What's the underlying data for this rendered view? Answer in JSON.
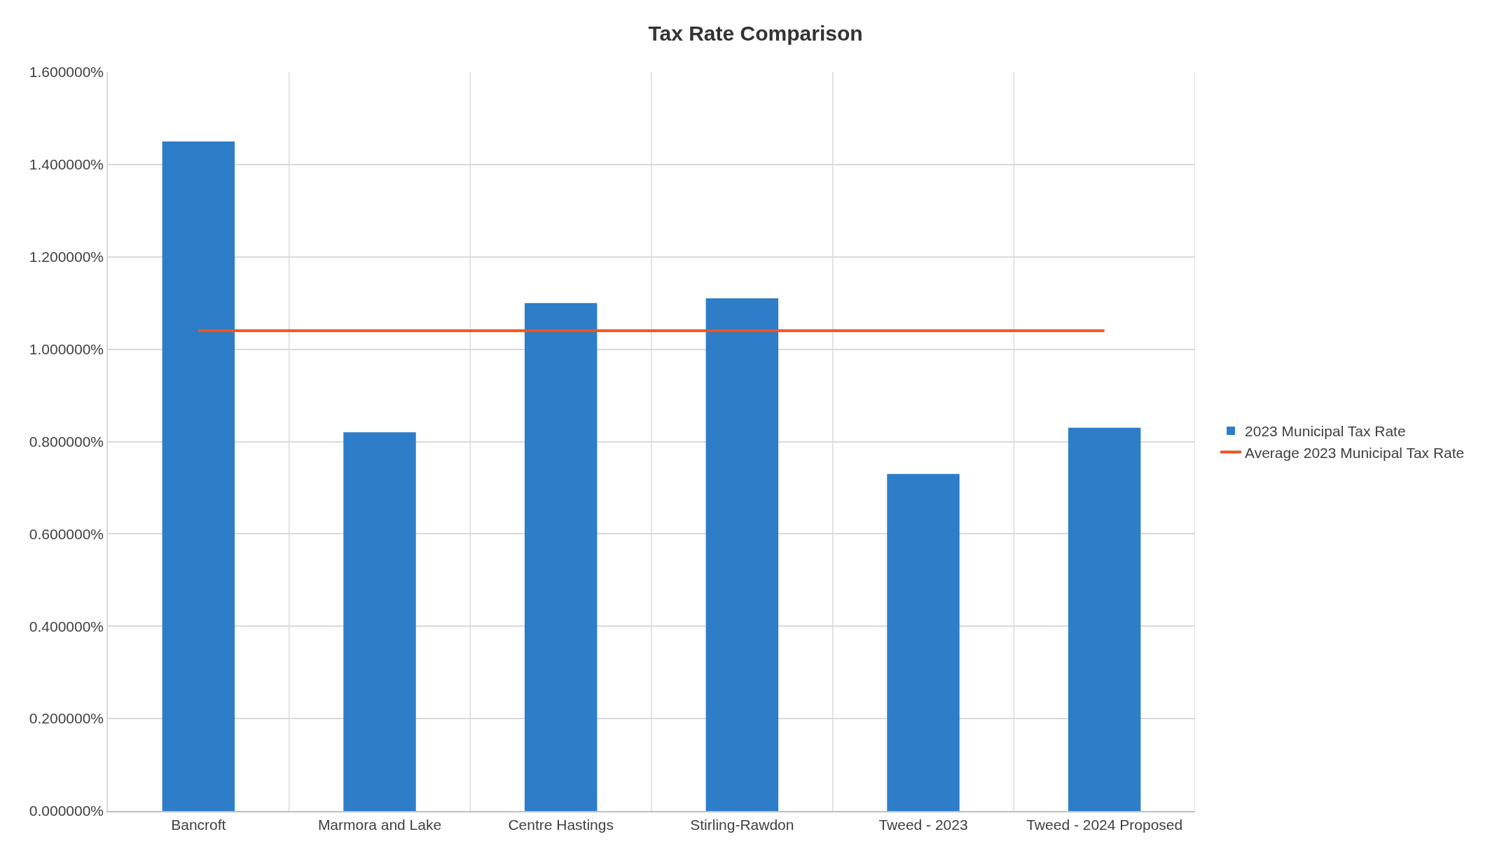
{
  "chart_data": {
    "type": "bar",
    "title": "Tax Rate Comparison",
    "categories": [
      "Bancroft",
      "Marmora and Lake",
      "Centre Hastings",
      "Stirling-Rawdon",
      "Tweed - 2023",
      "Tweed - 2024 Proposed"
    ],
    "series": [
      {
        "name": "2023 Municipal Tax Rate",
        "color": "#2e7dc8",
        "values": [
          1.45,
          0.82,
          1.1,
          1.11,
          0.73,
          0.83
        ]
      },
      {
        "name": "Average 2023 Municipal Tax Rate",
        "type": "line",
        "color": "#f0541e",
        "values": [
          1.04,
          1.04,
          1.04,
          1.04,
          1.04,
          1.04
        ]
      }
    ],
    "ylim": [
      0,
      1.6
    ],
    "yticks": [
      {
        "value": 0,
        "label": "0.000000%"
      },
      {
        "value": 0.2,
        "label": "0.200000%"
      },
      {
        "value": 0.4,
        "label": "0.400000%"
      },
      {
        "value": 0.6,
        "label": "0.600000%"
      },
      {
        "value": 0.8,
        "label": "0.800000%"
      },
      {
        "value": 1.0,
        "label": "1.000000%"
      },
      {
        "value": 1.2,
        "label": "1.200000%"
      },
      {
        "value": 1.4,
        "label": "1.400000%"
      },
      {
        "value": 1.6,
        "label": "1.600000%"
      }
    ],
    "grid": true,
    "legend": "right"
  }
}
